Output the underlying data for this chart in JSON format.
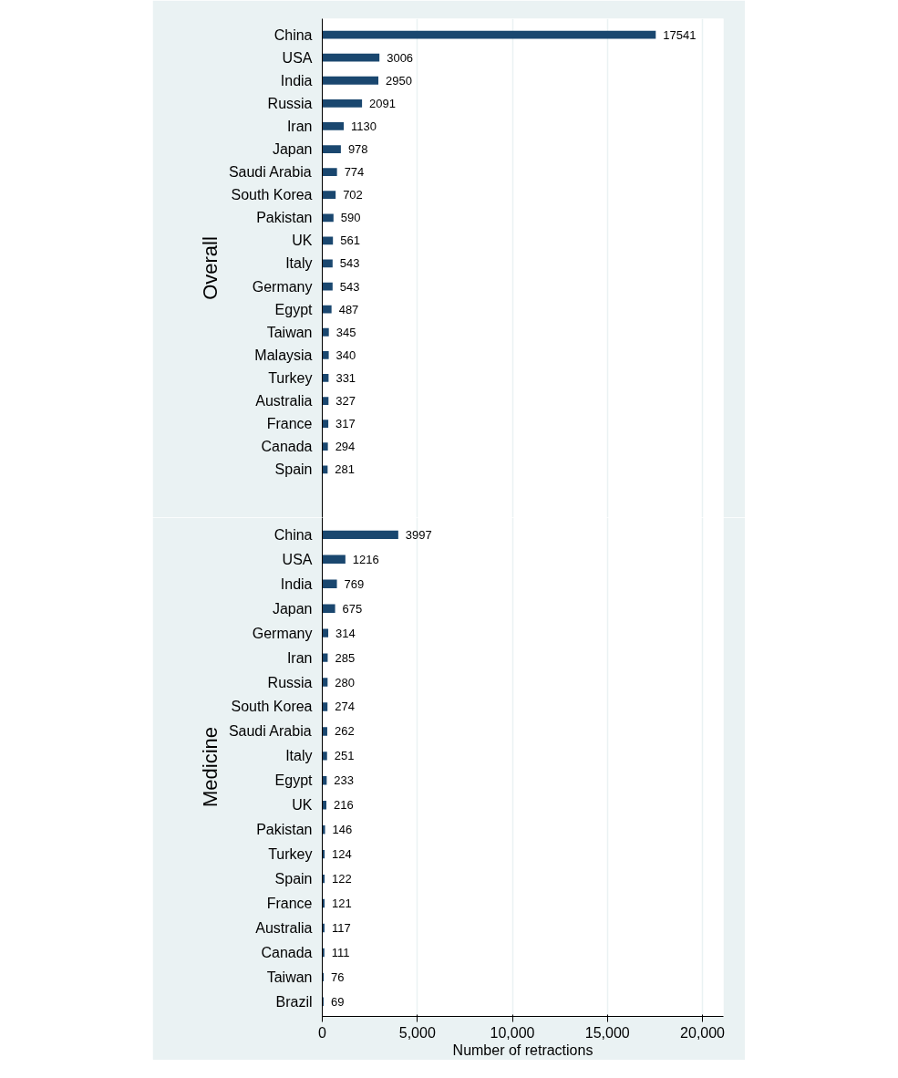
{
  "chart_data": [
    {
      "type": "bar",
      "orientation": "horizontal",
      "ylabel": "Overall",
      "categories": [
        "China",
        "USA",
        "India",
        "Russia",
        "Iran",
        "Japan",
        "Saudi Arabia",
        "South Korea",
        "Pakistan",
        "UK",
        "Italy",
        "Germany",
        "Egypt",
        "Taiwan",
        "Malaysia",
        "Turkey",
        "Australia",
        "France",
        "Canada",
        "Spain"
      ],
      "values": [
        17541,
        3006,
        2950,
        2091,
        1130,
        978,
        774,
        702,
        590,
        561,
        543,
        543,
        487,
        345,
        340,
        331,
        327,
        317,
        294,
        281
      ],
      "color": "#1a476f",
      "xlim": [
        0,
        21100
      ],
      "xticks": [
        0,
        5000,
        10000,
        15000,
        20000
      ],
      "data_labels": true,
      "grid": "x",
      "tick_labels": "y"
    },
    {
      "type": "bar",
      "orientation": "horizontal",
      "ylabel": "Medicine",
      "xlabel": "Number of retractions",
      "categories": [
        "China",
        "USA",
        "India",
        "Japan",
        "Germany",
        "Iran",
        "Russia",
        "South Korea",
        "Saudi Arabia",
        "Italy",
        "Egypt",
        "UK",
        "Pakistan",
        "Turkey",
        "Spain",
        "France",
        "Australia",
        "Canada",
        "Taiwan",
        "Brazil"
      ],
      "values": [
        3997,
        1216,
        769,
        675,
        314,
        285,
        280,
        274,
        262,
        251,
        233,
        216,
        146,
        124,
        122,
        121,
        117,
        111,
        76,
        69
      ],
      "color": "#1a476f",
      "xlim": [
        0,
        21100
      ],
      "xticks": [
        0,
        {
          "value": 5000,
          "label": "5,000"
        },
        {
          "value": 10000,
          "label": "10,000"
        },
        {
          "value": 15000,
          "label": "15,000"
        },
        {
          "value": 20000,
          "label": "20,000"
        }
      ],
      "data_labels": true,
      "grid": "x"
    }
  ]
}
